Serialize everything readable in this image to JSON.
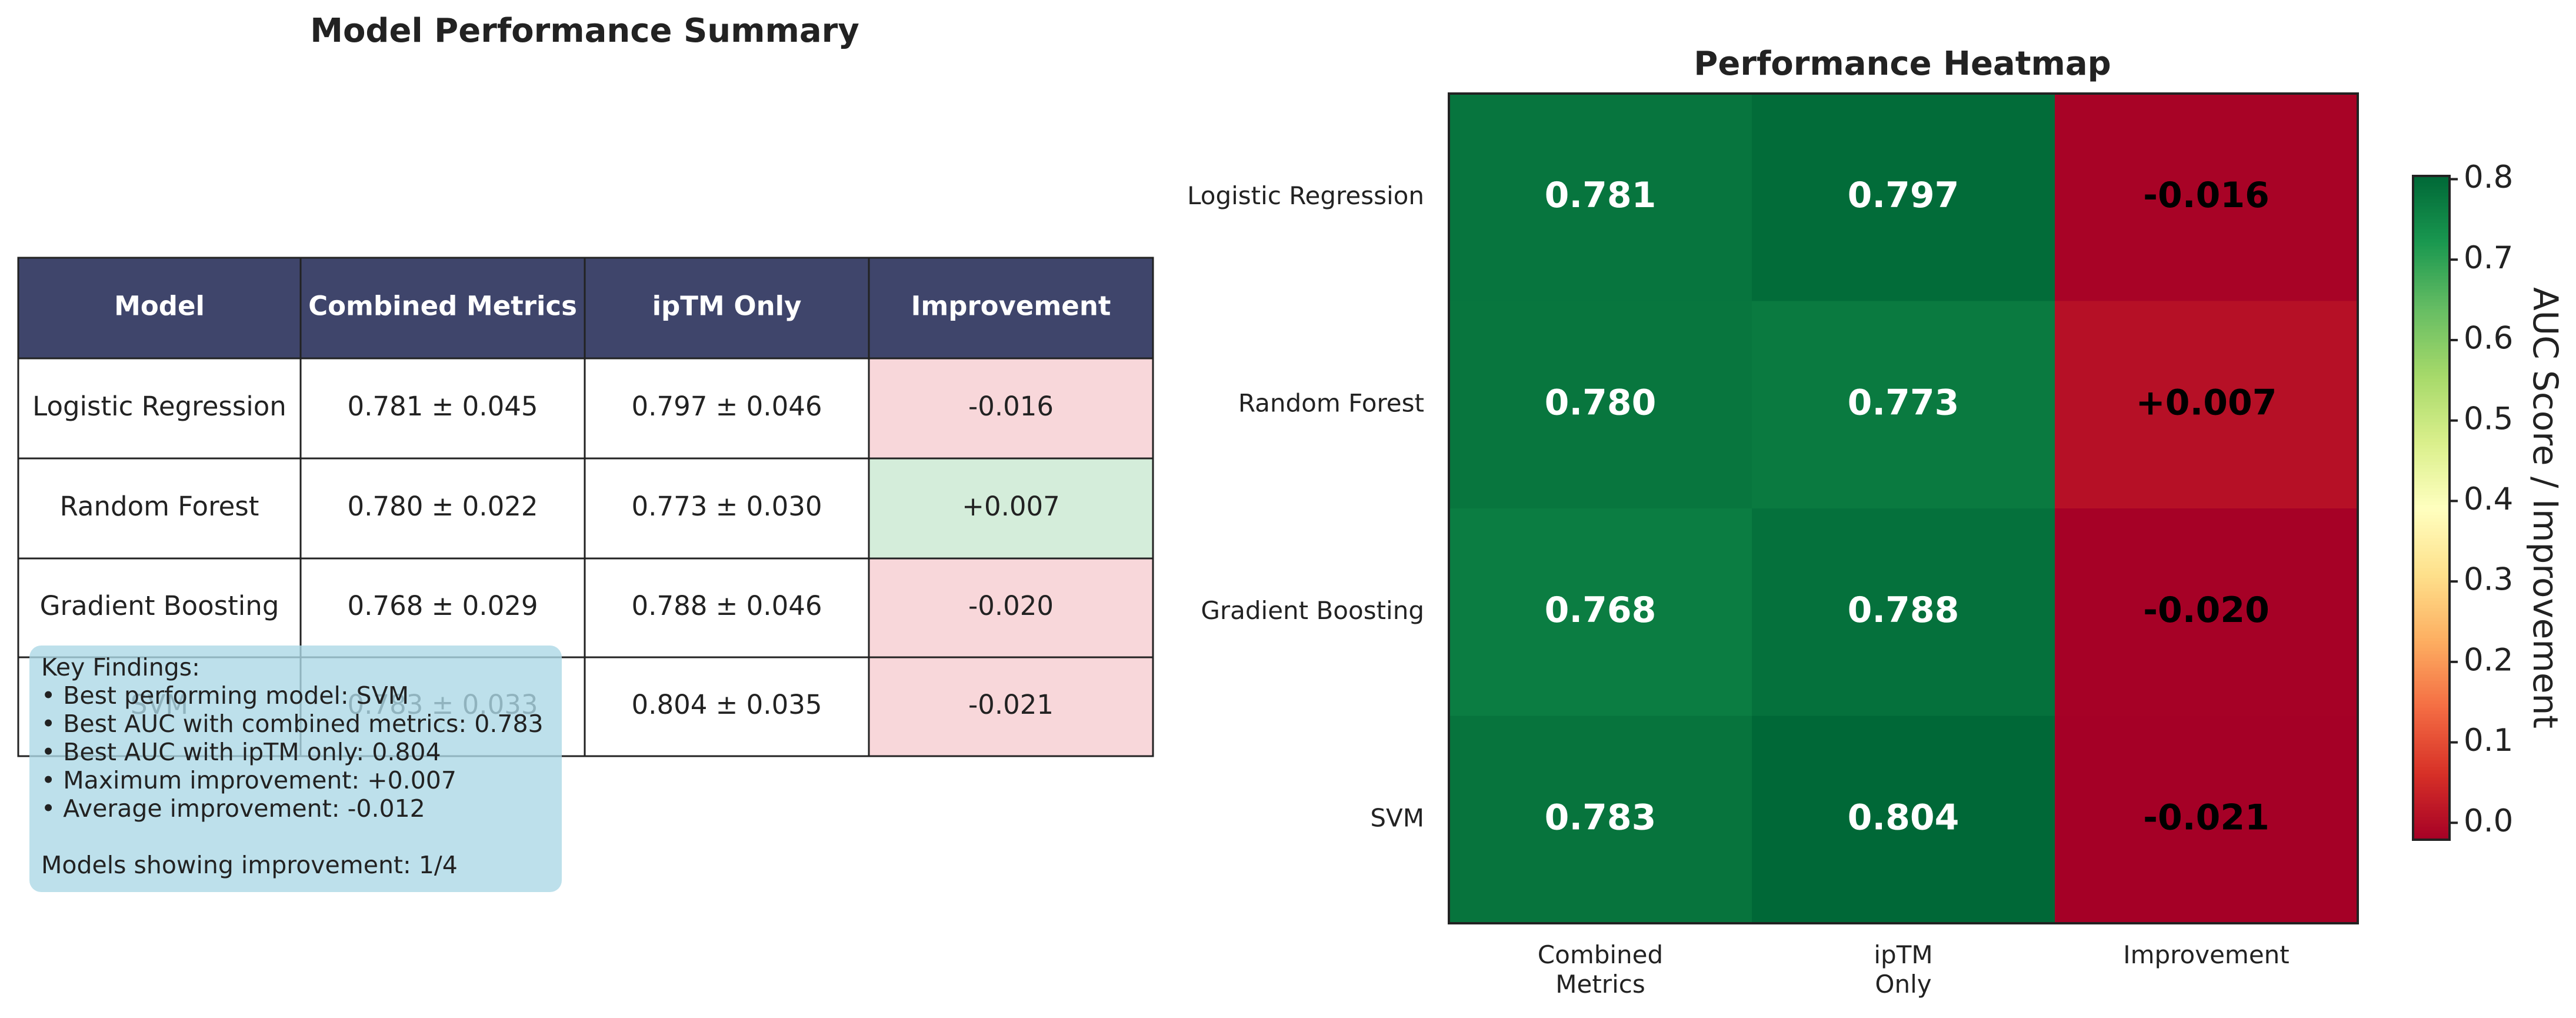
{
  "table": {
    "title": "Model Performance Summary",
    "header": [
      "Model",
      "Combined Metrics",
      "ipTM Only",
      "Improvement"
    ],
    "header_color": "#3f456b",
    "rows": [
      [
        "Logistic Regression",
        "0.781 ± 0.045",
        "0.797 ± 0.046",
        "-0.016"
      ],
      [
        "Random Forest",
        "0.780 ± 0.022",
        "0.773 ± 0.030",
        "+0.007"
      ],
      [
        "Gradient Boosting",
        "0.768 ± 0.029",
        "0.788 ± 0.046",
        "-0.020"
      ],
      [
        "SVM",
        "0.783 ± 0.033",
        "0.804 ± 0.035",
        "-0.021"
      ]
    ],
    "improvement_colors": [
      "#f8d7da",
      "#d4edda",
      "#f8d7da",
      "#f8d7da"
    ]
  },
  "findings": {
    "title": "Key Findings:",
    "lines": [
      "• Best performing model: SVM",
      "• Best AUC with combined metrics: 0.783",
      "• Best AUC with ipTM only: 0.804",
      "• Maximum improvement: +0.007",
      "• Average improvement: -0.012"
    ],
    "footer": "Models showing improvement: 1/4"
  },
  "chart_data": {
    "type": "heatmap",
    "title": "Performance Heatmap",
    "rows": [
      "Logistic Regression",
      "Random Forest",
      "Gradient Boosting",
      "SVM"
    ],
    "columns": [
      "Combined\nMetrics",
      "ipTM\nOnly",
      "Improvement"
    ],
    "values": [
      [
        0.781,
        0.797,
        -0.016
      ],
      [
        0.78,
        0.773,
        0.007
      ],
      [
        0.768,
        0.788,
        -0.02
      ],
      [
        0.783,
        0.804,
        -0.021
      ]
    ],
    "value_labels": [
      [
        "0.781",
        "0.797",
        "-0.016"
      ],
      [
        "0.780",
        "0.773",
        "+0.007"
      ],
      [
        "0.768",
        "0.788",
        "-0.020"
      ],
      [
        "0.783",
        "0.804",
        "-0.021"
      ]
    ],
    "colormap": "RdYlGn",
    "clim": [
      -0.021,
      0.804
    ],
    "colorbar_ticks": [
      {
        "value": 0,
        "label": "0.0"
      },
      0.1,
      0.2,
      0.3,
      0.4,
      0.5,
      0.6,
      0.7,
      0.8
    ],
    "colorbar_label": "AUC Score / Improvement"
  }
}
